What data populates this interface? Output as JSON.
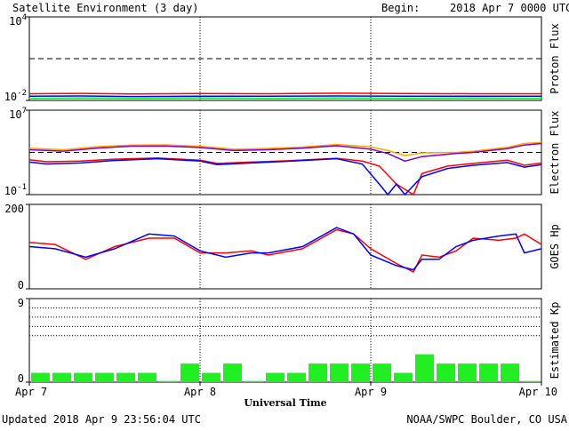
{
  "header": {
    "title": "Satellite Environment (3 day)",
    "begin_label": "Begin:",
    "begin_value": "2018 Apr 7 0000 UTC"
  },
  "footer": {
    "updated": "Updated 2018 Apr  9 23:56:04 UTC",
    "credit": "NOAA/SWPC Boulder, CO USA"
  },
  "chart_data": [
    {
      "type": "line",
      "ylabel": "Proton Flux",
      "scale": "log",
      "yticks": [
        {
          "base": "10",
          "exp": "4",
          "value": 10000
        },
        {
          "base": "10",
          "exp": "-2",
          "value": 0.01
        }
      ],
      "ylim": [
        0.01,
        10000
      ],
      "reference_line": 10,
      "x_range_days": [
        0,
        3
      ],
      "series": [
        {
          "color": "#ff0000",
          "points": [
            [
              0,
              0.03
            ],
            [
              0.3,
              0.032
            ],
            [
              0.6,
              0.029
            ],
            [
              1,
              0.031
            ],
            [
              1.4,
              0.03
            ],
            [
              1.8,
              0.033
            ],
            [
              2.2,
              0.031
            ],
            [
              2.6,
              0.03
            ],
            [
              3,
              0.03
            ]
          ]
        },
        {
          "color": "#0000ff",
          "points": [
            [
              0,
              0.02
            ],
            [
              0.3,
              0.021
            ],
            [
              0.6,
              0.019
            ],
            [
              1,
              0.02
            ],
            [
              1.4,
              0.02
            ],
            [
              1.8,
              0.021
            ],
            [
              2.2,
              0.02
            ],
            [
              2.6,
              0.02
            ],
            [
              3,
              0.02
            ]
          ]
        },
        {
          "color": "#00ff00",
          "points": [
            [
              0,
              0.014
            ],
            [
              0.3,
              0.015
            ],
            [
              0.6,
              0.014
            ],
            [
              1,
              0.015
            ],
            [
              1.4,
              0.014
            ],
            [
              1.8,
              0.015
            ],
            [
              2.2,
              0.014
            ],
            [
              2.6,
              0.015
            ],
            [
              3,
              0.014
            ]
          ]
        }
      ],
      "grid_days": [
        1,
        2
      ]
    },
    {
      "type": "line",
      "ylabel": "Electron Flux",
      "scale": "log",
      "yticks": [
        {
          "base": "10",
          "exp": "7",
          "value": 10000000
        },
        {
          "base": "10",
          "exp": "-1",
          "value": 0.1
        }
      ],
      "ylim": [
        0.1,
        10000000
      ],
      "reference_line": 1000,
      "x_range_days": [
        0,
        3
      ],
      "series": [
        {
          "color": "#ffa500",
          "points": [
            [
              0,
              2500
            ],
            [
              0.2,
              1800
            ],
            [
              0.4,
              3500
            ],
            [
              0.6,
              5000
            ],
            [
              0.8,
              5200
            ],
            [
              1,
              3800
            ],
            [
              1.2,
              2000
            ],
            [
              1.4,
              2400
            ],
            [
              1.6,
              3200
            ],
            [
              1.8,
              5600
            ],
            [
              2,
              3300
            ],
            [
              2.1,
              1500
            ],
            [
              2.2,
              500
            ],
            [
              2.3,
              900
            ],
            [
              2.5,
              1000
            ],
            [
              2.6,
              1300
            ],
            [
              2.8,
              3000
            ],
            [
              2.9,
              7000
            ],
            [
              3,
              9000
            ]
          ]
        },
        {
          "color": "#8000c0",
          "points": [
            [
              0,
              1800
            ],
            [
              0.2,
              1300
            ],
            [
              0.4,
              2600
            ],
            [
              0.6,
              3900
            ],
            [
              0.8,
              4000
            ],
            [
              1,
              2900
            ],
            [
              1.2,
              1500
            ],
            [
              1.4,
              1800
            ],
            [
              1.6,
              2500
            ],
            [
              1.8,
              4300
            ],
            [
              2,
              2000
            ],
            [
              2.1,
              800
            ],
            [
              2.2,
              150
            ],
            [
              2.3,
              400
            ],
            [
              2.5,
              800
            ],
            [
              2.6,
              1000
            ],
            [
              2.8,
              2300
            ],
            [
              2.9,
              5000
            ],
            [
              3,
              7000
            ]
          ]
        },
        {
          "color": "#ff0000",
          "points": [
            [
              0,
              200
            ],
            [
              0.1,
              130
            ],
            [
              0.3,
              150
            ],
            [
              0.5,
              230
            ],
            [
              0.75,
              300
            ],
            [
              1,
              180
            ],
            [
              1.1,
              90
            ],
            [
              1.3,
              120
            ],
            [
              1.5,
              160
            ],
            [
              1.8,
              280
            ],
            [
              1.95,
              150
            ],
            [
              2.05,
              50
            ],
            [
              2.15,
              1
            ],
            [
              2.25,
              0.1
            ],
            [
              2.3,
              10
            ],
            [
              2.45,
              50
            ],
            [
              2.6,
              90
            ],
            [
              2.8,
              180
            ],
            [
              2.9,
              60
            ],
            [
              3,
              100
            ]
          ]
        },
        {
          "color": "#0000ff",
          "points": [
            [
              0,
              120
            ],
            [
              0.1,
              80
            ],
            [
              0.3,
              100
            ],
            [
              0.5,
              170
            ],
            [
              0.75,
              250
            ],
            [
              1,
              150
            ],
            [
              1.1,
              70
            ],
            [
              1.3,
              100
            ],
            [
              1.5,
              140
            ],
            [
              1.8,
              250
            ],
            [
              1.95,
              80
            ],
            [
              2.05,
              1
            ],
            [
              2.1,
              0.1
            ],
            [
              2.15,
              1
            ],
            [
              2.2,
              0.1
            ],
            [
              2.3,
              5
            ],
            [
              2.45,
              30
            ],
            [
              2.6,
              60
            ],
            [
              2.8,
              110
            ],
            [
              2.9,
              40
            ],
            [
              3,
              70
            ]
          ]
        }
      ],
      "grid_days": [
        1,
        2
      ]
    },
    {
      "type": "line",
      "ylabel": "GOES Hp",
      "scale": "linear",
      "yticks": [
        {
          "text": "200",
          "value": 200
        },
        {
          "text": "0",
          "value": 0
        }
      ],
      "ylim": [
        0,
        200
      ],
      "x_range_days": [
        0,
        3
      ],
      "series": [
        {
          "color": "#ff0000",
          "points": [
            [
              0,
              110
            ],
            [
              0.15,
              105
            ],
            [
              0.33,
              70
            ],
            [
              0.5,
              100
            ],
            [
              0.7,
              120
            ],
            [
              0.85,
              120
            ],
            [
              1,
              85
            ],
            [
              1.15,
              85
            ],
            [
              1.3,
              90
            ],
            [
              1.4,
              80
            ],
            [
              1.6,
              95
            ],
            [
              1.8,
              140
            ],
            [
              1.9,
              130
            ],
            [
              2,
              95
            ],
            [
              2.15,
              60
            ],
            [
              2.25,
              40
            ],
            [
              2.3,
              80
            ],
            [
              2.4,
              75
            ],
            [
              2.5,
              90
            ],
            [
              2.6,
              120
            ],
            [
              2.75,
              115
            ],
            [
              2.85,
              120
            ],
            [
              2.9,
              130
            ],
            [
              3,
              105
            ]
          ]
        },
        {
          "color": "#0000ff",
          "points": [
            [
              0,
              100
            ],
            [
              0.15,
              95
            ],
            [
              0.33,
              75
            ],
            [
              0.5,
              95
            ],
            [
              0.7,
              130
            ],
            [
              0.85,
              125
            ],
            [
              1,
              90
            ],
            [
              1.15,
              75
            ],
            [
              1.3,
              85
            ],
            [
              1.4,
              85
            ],
            [
              1.6,
              100
            ],
            [
              1.8,
              145
            ],
            [
              1.9,
              130
            ],
            [
              2,
              80
            ],
            [
              2.15,
              55
            ],
            [
              2.25,
              45
            ],
            [
              2.3,
              70
            ],
            [
              2.4,
              70
            ],
            [
              2.5,
              100
            ],
            [
              2.6,
              115
            ],
            [
              2.75,
              125
            ],
            [
              2.85,
              130
            ],
            [
              2.9,
              85
            ],
            [
              3,
              95
            ]
          ]
        }
      ],
      "grid_days": [
        1,
        2
      ]
    },
    {
      "type": "bar",
      "ylabel": "Estimated Kp",
      "scale": "linear",
      "yticks": [
        {
          "text": "9",
          "value": 9
        },
        {
          "text": "0",
          "value": 0
        }
      ],
      "ylim": [
        0,
        9
      ],
      "hlines": [
        5,
        6,
        7,
        8
      ],
      "bar_color": "#22ee22",
      "values": [
        1,
        1,
        1,
        1,
        1,
        1,
        0,
        2,
        1,
        2,
        0,
        1,
        1,
        2,
        2,
        2,
        2,
        1,
        3,
        2,
        2,
        2,
        2,
        0
      ],
      "xtick_labels": [
        "Apr 7",
        "Apr 8",
        "Apr 9",
        "Apr 10"
      ],
      "xlabel": "Universal Time",
      "grid_days": [
        1,
        2
      ]
    }
  ]
}
